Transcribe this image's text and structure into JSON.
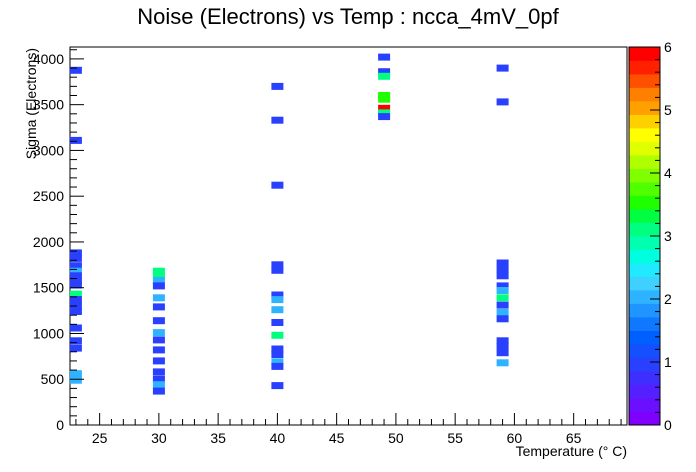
{
  "chart_data": {
    "type": "heatmap",
    "title": "Noise (Electrons) vs Temp : ncca_4mV_0pf",
    "xlabel": "Temperature (° C)",
    "ylabel": "Sigma (Electrons)",
    "xlim": [
      22.5,
      69.5
    ],
    "ylim": [
      0,
      4130
    ],
    "x_ticks": [
      25,
      30,
      35,
      40,
      45,
      50,
      55,
      60,
      65
    ],
    "y_ticks": [
      0,
      500,
      1000,
      1500,
      2000,
      2500,
      3000,
      3500,
      4000
    ],
    "colorbar": {
      "range": [
        0,
        6
      ],
      "ticks": [
        0,
        1,
        2,
        3,
        4,
        5,
        6
      ],
      "colors": [
        "#7f00ff",
        "#6a10ff",
        "#5520ff",
        "#3f2fff",
        "#2a40ff",
        "#1550ff",
        "#0060ff",
        "#0f78ff",
        "#1f95ff",
        "#2fb2ff",
        "#3fd0ff",
        "#20eaff",
        "#00ffe0",
        "#00ffb0",
        "#00ff80",
        "#00ff40",
        "#20ff00",
        "#50ff00",
        "#80ff00",
        "#b0ff00",
        "#e0ff00",
        "#ffff00",
        "#ffd000",
        "#ffa000",
        "#ff8000",
        "#ff5000",
        "#ff2000",
        "#ff0000"
      ]
    },
    "bins": [
      {
        "x": 23,
        "y": 3875,
        "z": 1
      },
      {
        "x": 23,
        "y": 3110,
        "z": 1
      },
      {
        "x": 23,
        "y": 1880,
        "z": 1
      },
      {
        "x": 23,
        "y": 1820,
        "z": 1
      },
      {
        "x": 23,
        "y": 1740,
        "z": 1
      },
      {
        "x": 23,
        "y": 1680,
        "z": 2
      },
      {
        "x": 23,
        "y": 1630,
        "z": 1
      },
      {
        "x": 23,
        "y": 1570,
        "z": 1
      },
      {
        "x": 23,
        "y": 1530,
        "z": 1
      },
      {
        "x": 23,
        "y": 1430,
        "z": 3
      },
      {
        "x": 23,
        "y": 1370,
        "z": 1
      },
      {
        "x": 23,
        "y": 1300,
        "z": 1
      },
      {
        "x": 23,
        "y": 1240,
        "z": 1
      },
      {
        "x": 23,
        "y": 1060,
        "z": 1
      },
      {
        "x": 23,
        "y": 920,
        "z": 1
      },
      {
        "x": 23,
        "y": 840,
        "z": 1
      },
      {
        "x": 23,
        "y": 560,
        "z": 2
      },
      {
        "x": 23,
        "y": 490,
        "z": 2
      },
      {
        "x": 30,
        "y": 1680,
        "z": 3
      },
      {
        "x": 30,
        "y": 1630,
        "z": 3
      },
      {
        "x": 30,
        "y": 1580,
        "z": 2
      },
      {
        "x": 30,
        "y": 1520,
        "z": 1
      },
      {
        "x": 30,
        "y": 1390,
        "z": 2
      },
      {
        "x": 30,
        "y": 1290,
        "z": 1
      },
      {
        "x": 30,
        "y": 1140,
        "z": 1
      },
      {
        "x": 30,
        "y": 1010,
        "z": 2
      },
      {
        "x": 30,
        "y": 930,
        "z": 1
      },
      {
        "x": 30,
        "y": 820,
        "z": 1
      },
      {
        "x": 30,
        "y": 700,
        "z": 1
      },
      {
        "x": 30,
        "y": 580,
        "z": 1
      },
      {
        "x": 30,
        "y": 500,
        "z": 1
      },
      {
        "x": 30,
        "y": 440,
        "z": 2
      },
      {
        "x": 30,
        "y": 370,
        "z": 1
      },
      {
        "x": 40,
        "y": 3700,
        "z": 1
      },
      {
        "x": 40,
        "y": 3330,
        "z": 1
      },
      {
        "x": 40,
        "y": 2620,
        "z": 1
      },
      {
        "x": 40,
        "y": 1750,
        "z": 1
      },
      {
        "x": 40,
        "y": 1690,
        "z": 1
      },
      {
        "x": 40,
        "y": 1420,
        "z": 1
      },
      {
        "x": 40,
        "y": 1370,
        "z": 2
      },
      {
        "x": 40,
        "y": 1260,
        "z": 2
      },
      {
        "x": 40,
        "y": 1120,
        "z": 1
      },
      {
        "x": 40,
        "y": 980,
        "z": 3
      },
      {
        "x": 40,
        "y": 830,
        "z": 1
      },
      {
        "x": 40,
        "y": 770,
        "z": 1
      },
      {
        "x": 40,
        "y": 690,
        "z": 2
      },
      {
        "x": 40,
        "y": 640,
        "z": 1
      },
      {
        "x": 40,
        "y": 430,
        "z": 1
      },
      {
        "x": 49,
        "y": 4020,
        "z": 1
      },
      {
        "x": 49,
        "y": 3860,
        "z": 1
      },
      {
        "x": 49,
        "y": 3810,
        "z": 3
      },
      {
        "x": 49,
        "y": 3600,
        "z": 3.5
      },
      {
        "x": 49,
        "y": 3560,
        "z": 3.5
      },
      {
        "x": 49,
        "y": 3460,
        "z": 6
      },
      {
        "x": 49,
        "y": 3410,
        "z": 3
      },
      {
        "x": 49,
        "y": 3370,
        "z": 1
      },
      {
        "x": 59,
        "y": 3900,
        "z": 1
      },
      {
        "x": 59,
        "y": 3530,
        "z": 1
      },
      {
        "x": 59,
        "y": 1770,
        "z": 1
      },
      {
        "x": 59,
        "y": 1700,
        "z": 1
      },
      {
        "x": 59,
        "y": 1630,
        "z": 1
      },
      {
        "x": 59,
        "y": 1520,
        "z": 1
      },
      {
        "x": 59,
        "y": 1470,
        "z": 2
      },
      {
        "x": 59,
        "y": 1390,
        "z": 3
      },
      {
        "x": 59,
        "y": 1310,
        "z": 1
      },
      {
        "x": 59,
        "y": 1230,
        "z": 2
      },
      {
        "x": 59,
        "y": 1160,
        "z": 1
      },
      {
        "x": 59,
        "y": 920,
        "z": 1
      },
      {
        "x": 59,
        "y": 860,
        "z": 1
      },
      {
        "x": 59,
        "y": 790,
        "z": 1
      },
      {
        "x": 59,
        "y": 680,
        "z": 2
      }
    ]
  }
}
